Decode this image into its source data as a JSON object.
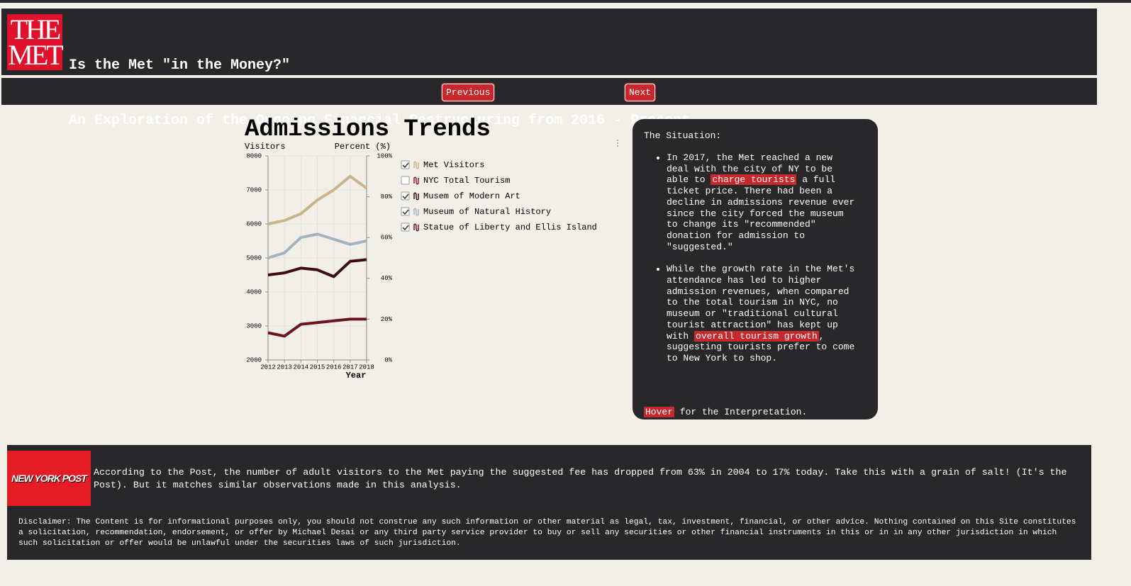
{
  "header": {
    "logo_top": "THE",
    "logo_bottom": "MET",
    "title": "Is the Met \"in the Money?\"",
    "subtitle": "An Exploration of the Ongoing Financial Restructuring from 2016 - Present."
  },
  "nav": {
    "previous": "Previous",
    "next": "Next"
  },
  "chart_data": {
    "type": "line",
    "title": "Admissions Trends",
    "y_label": "Visitors",
    "y2_label": "Percent (%)",
    "x_label": "Year",
    "x": [
      2012,
      2013,
      2014,
      2015,
      2016,
      2017,
      2018
    ],
    "xlim": [
      2012,
      2018
    ],
    "xticks": [
      2012,
      2013,
      2014,
      2015,
      2016,
      2017,
      2018
    ],
    "ylim": [
      2000,
      8000
    ],
    "yticks": [
      2000,
      3000,
      4000,
      5000,
      6000,
      7000,
      8000
    ],
    "y2lim": [
      0,
      100
    ],
    "y2ticks": [
      {
        "value": 0,
        "label": "0%"
      },
      {
        "value": 20,
        "label": "20%"
      },
      {
        "value": 40,
        "label": "40%"
      },
      {
        "value": 60,
        "label": "60%"
      },
      {
        "value": 80,
        "label": "80%"
      },
      {
        "value": 100,
        "label": "100%"
      }
    ],
    "grid": true,
    "series": [
      {
        "name": "Met Visitors",
        "color": "#c8b68a",
        "visible": true,
        "values": [
          6000,
          6100,
          6300,
          6700,
          7000,
          7400,
          7050
        ]
      },
      {
        "name": "NYC Total Tourism",
        "color": "#9b1b24",
        "visible": false,
        "axis": "y2",
        "values": [
          null,
          null,
          null,
          null,
          null,
          null,
          null
        ]
      },
      {
        "name": "Musem of Modern Art",
        "color": "#3d0a14",
        "visible": true,
        "values": [
          4500,
          4560,
          4700,
          4650,
          4450,
          4900,
          4950
        ]
      },
      {
        "name": "Museum of Natural History",
        "color": "#a1b3bf",
        "visible": true,
        "values": [
          5000,
          5150,
          5600,
          5700,
          5550,
          5400,
          5500
        ]
      },
      {
        "name": "Statue of Liberty and Ellis Island",
        "color": "#6b1420",
        "visible": true,
        "values": [
          2800,
          2700,
          3050,
          3100,
          3150,
          3200,
          3200
        ]
      }
    ]
  },
  "panel": {
    "heading": "The Situation:",
    "bullets": [
      [
        "In 2017, the Met reached a new deal with the city of NY to be able to ",
        "charge tourists",
        " a full ticket price. There had been a decline in admissions revenue ever since the city forced the museum to change its \"recommended\" donation for admission to \"suggested.\""
      ],
      [
        "While the growth rate in the Met's attendance has led to higher admission revenues, when compared to the total tourism in NYC, no museum or \"traditional cultural tourist attraction\" has kept up with ",
        "overall tourism growth",
        ", suggesting tourists prefer to come to New York to shop."
      ]
    ],
    "hover": "Hover",
    "hover_rest": " for the Interpretation."
  },
  "footer": {
    "logo": "NEW YORK POST",
    "quote": "According to the Post, the number of adult visitors to the Met paying the suggested fee has dropped from 63% in 2004 to 17% today. Take this with a grain of salt! (It's the Post). But it matches similar observations made in this analysis.",
    "disclaimer": "Disclaimer: The Content is for informational purposes only, you should not construe any such information or other material as legal, tax, investment, financial, or other advice. Nothing contained on this Site constitutes a solicitation, recommendation, endorsement, or offer by Michael Desai or any third party service provider to buy or sell any securities or other financial instruments in this or in in any other jurisdiction in which such solicitation or offer would be unlawful under the securities laws of such jurisdiction."
  }
}
